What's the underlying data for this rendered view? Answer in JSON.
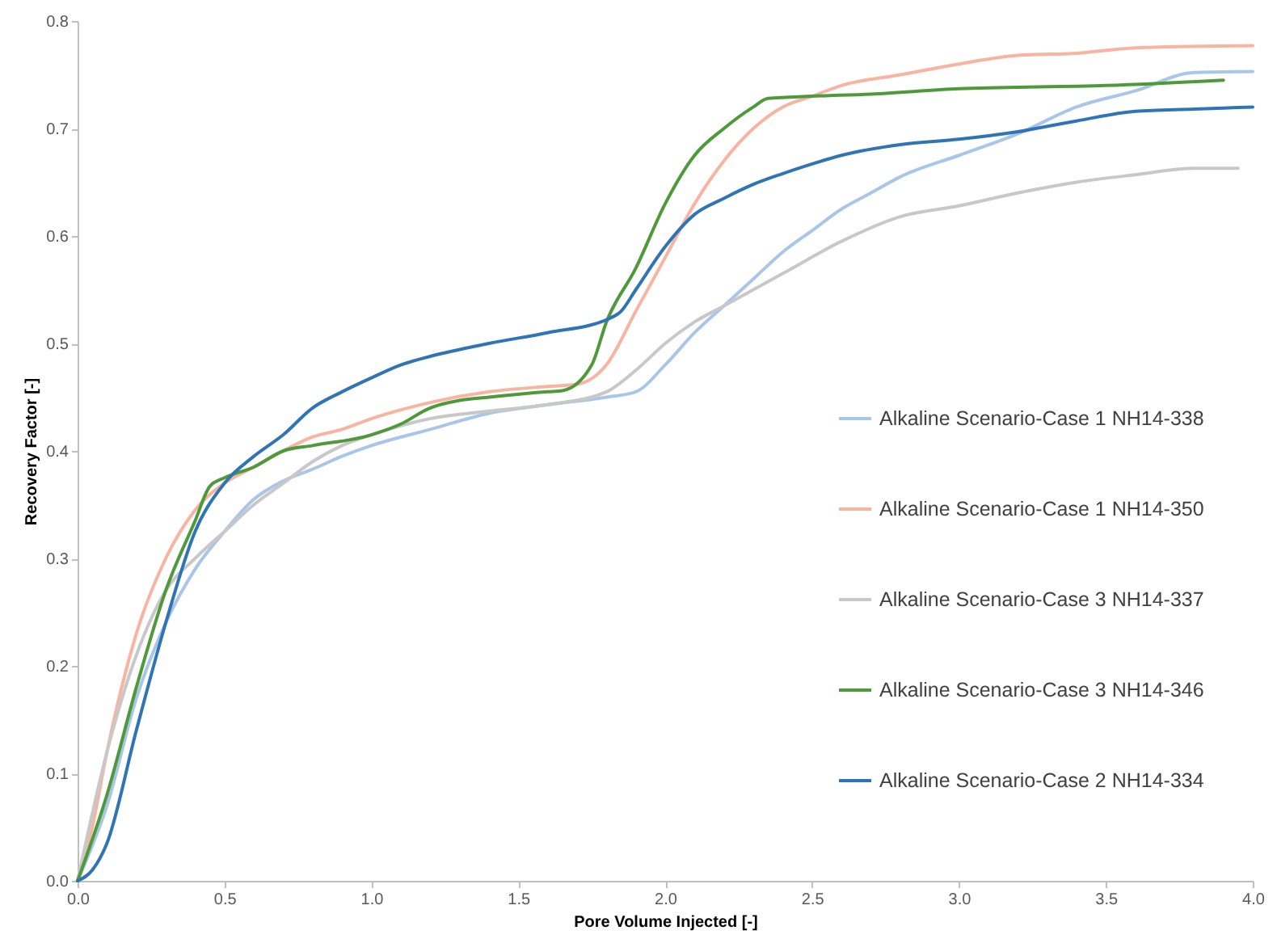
{
  "chart_data": {
    "type": "line",
    "xlabel": "Pore Volume Injected [-]",
    "ylabel": "Recovery Factor [-]",
    "xlim": [
      0,
      4
    ],
    "ylim": [
      0,
      0.8
    ],
    "xticks": [
      {
        "value": 0,
        "label": "0.0"
      },
      {
        "value": 0.5,
        "label": "0.5"
      },
      {
        "value": 1,
        "label": "1.0"
      },
      {
        "value": 1.5,
        "label": "1.5"
      },
      {
        "value": 2,
        "label": "2.0"
      },
      {
        "value": 2.5,
        "label": "2.5"
      },
      {
        "value": 3,
        "label": "3.0"
      },
      {
        "value": 3.5,
        "label": "3.5"
      },
      {
        "value": 4,
        "label": "4.0"
      }
    ],
    "yticks": [
      {
        "value": 0,
        "label": "0.0"
      },
      {
        "value": 0.1,
        "label": "0.1"
      },
      {
        "value": 0.2,
        "label": "0.2"
      },
      {
        "value": 0.3,
        "label": "0.3"
      },
      {
        "value": 0.4,
        "label": "0.4"
      },
      {
        "value": 0.5,
        "label": "0.5"
      },
      {
        "value": 0.6,
        "label": "0.6"
      },
      {
        "value": 0.7,
        "label": "0.7"
      },
      {
        "value": 0.8,
        "label": "0.8"
      }
    ],
    "grid": false,
    "legend": "right",
    "marker": "none",
    "line_style": "solid",
    "series": [
      {
        "name": "Alkaline Scenario-Case 1 NH14-338",
        "color": "#a9c6ea",
        "x": [
          0,
          0.1,
          0.2,
          0.3,
          0.4,
          0.5,
          0.6,
          0.7,
          0.8,
          0.9,
          1.0,
          1.2,
          1.4,
          1.6,
          1.8,
          1.9,
          2.0,
          2.1,
          2.2,
          2.3,
          2.4,
          2.5,
          2.6,
          2.7,
          2.8,
          3.0,
          3.2,
          3.4,
          3.6,
          3.8,
          4.0
        ],
        "values": [
          0,
          0.07,
          0.17,
          0.24,
          0.29,
          0.325,
          0.355,
          0.372,
          0.383,
          0.395,
          0.405,
          0.42,
          0.435,
          0.443,
          0.45,
          0.455,
          0.48,
          0.51,
          0.535,
          0.56,
          0.585,
          0.605,
          0.625,
          0.64,
          0.655,
          0.675,
          0.695,
          0.72,
          0.735,
          0.752,
          0.753
        ]
      },
      {
        "name": "Alkaline Scenario-Case 1 NH14-350",
        "color": "#f8b4a0",
        "x": [
          0,
          0.05,
          0.1,
          0.2,
          0.3,
          0.4,
          0.5,
          0.6,
          0.7,
          0.8,
          0.9,
          1.0,
          1.2,
          1.4,
          1.6,
          1.7,
          1.8,
          1.9,
          2.0,
          2.1,
          2.2,
          2.3,
          2.4,
          2.5,
          2.6,
          2.8,
          3.0,
          3.2,
          3.4,
          3.6,
          4.0
        ],
        "values": [
          0,
          0.05,
          0.12,
          0.23,
          0.3,
          0.345,
          0.37,
          0.385,
          0.4,
          0.413,
          0.42,
          0.43,
          0.445,
          0.455,
          0.46,
          0.462,
          0.48,
          0.53,
          0.58,
          0.63,
          0.67,
          0.7,
          0.72,
          0.73,
          0.74,
          0.75,
          0.76,
          0.768,
          0.77,
          0.775,
          0.777
        ]
      },
      {
        "name": "Alkaline Scenario-Case 3 NH14-337",
        "color": "#c8c8c8",
        "x": [
          0,
          0.1,
          0.2,
          0.3,
          0.4,
          0.5,
          0.6,
          0.7,
          0.8,
          0.9,
          1.0,
          1.2,
          1.4,
          1.6,
          1.8,
          1.9,
          2.0,
          2.1,
          2.2,
          2.4,
          2.6,
          2.8,
          3.0,
          3.2,
          3.4,
          3.6,
          3.8,
          3.95
        ],
        "values": [
          0,
          0.12,
          0.21,
          0.27,
          0.3,
          0.325,
          0.35,
          0.37,
          0.39,
          0.405,
          0.415,
          0.43,
          0.437,
          0.443,
          0.455,
          0.475,
          0.5,
          0.52,
          0.535,
          0.565,
          0.595,
          0.618,
          0.628,
          0.64,
          0.65,
          0.657,
          0.663,
          0.663
        ]
      },
      {
        "name": "Alkaline Scenario-Case 3 NH14-346",
        "color": "#4e9a3a",
        "x": [
          0,
          0.1,
          0.2,
          0.3,
          0.4,
          0.45,
          0.5,
          0.6,
          0.7,
          0.8,
          1.0,
          1.1,
          1.2,
          1.3,
          1.4,
          1.6,
          1.65,
          1.75,
          1.8,
          1.9,
          2.0,
          2.1,
          2.2,
          2.3,
          2.35,
          2.5,
          2.7,
          3.0,
          3.5,
          3.9
        ],
        "values": [
          0,
          0.08,
          0.18,
          0.27,
          0.335,
          0.367,
          0.375,
          0.385,
          0.4,
          0.405,
          0.415,
          0.425,
          0.44,
          0.447,
          0.45,
          0.455,
          0.456,
          0.48,
          0.52,
          0.57,
          0.63,
          0.675,
          0.7,
          0.72,
          0.728,
          0.73,
          0.732,
          0.737,
          0.74,
          0.745
        ]
      },
      {
        "name": "Alkaline Scenario-Case 2 NH14-334",
        "color": "#2f75b5",
        "x": [
          0,
          0.05,
          0.1,
          0.2,
          0.3,
          0.4,
          0.5,
          0.6,
          0.7,
          0.8,
          0.9,
          1.0,
          1.1,
          1.2,
          1.4,
          1.6,
          1.8,
          1.85,
          1.9,
          2.0,
          2.1,
          2.2,
          2.3,
          2.4,
          2.5,
          2.6,
          2.8,
          3.0,
          3.2,
          3.4,
          3.6,
          3.8,
          4.0
        ],
        "values": [
          0,
          0.01,
          0.035,
          0.14,
          0.24,
          0.325,
          0.37,
          0.395,
          0.415,
          0.44,
          0.455,
          0.468,
          0.48,
          0.488,
          0.5,
          0.51,
          0.522,
          0.53,
          0.55,
          0.59,
          0.62,
          0.635,
          0.648,
          0.658,
          0.667,
          0.675,
          0.685,
          0.69,
          0.697,
          0.707,
          0.716,
          0.718,
          0.72
        ]
      }
    ]
  }
}
